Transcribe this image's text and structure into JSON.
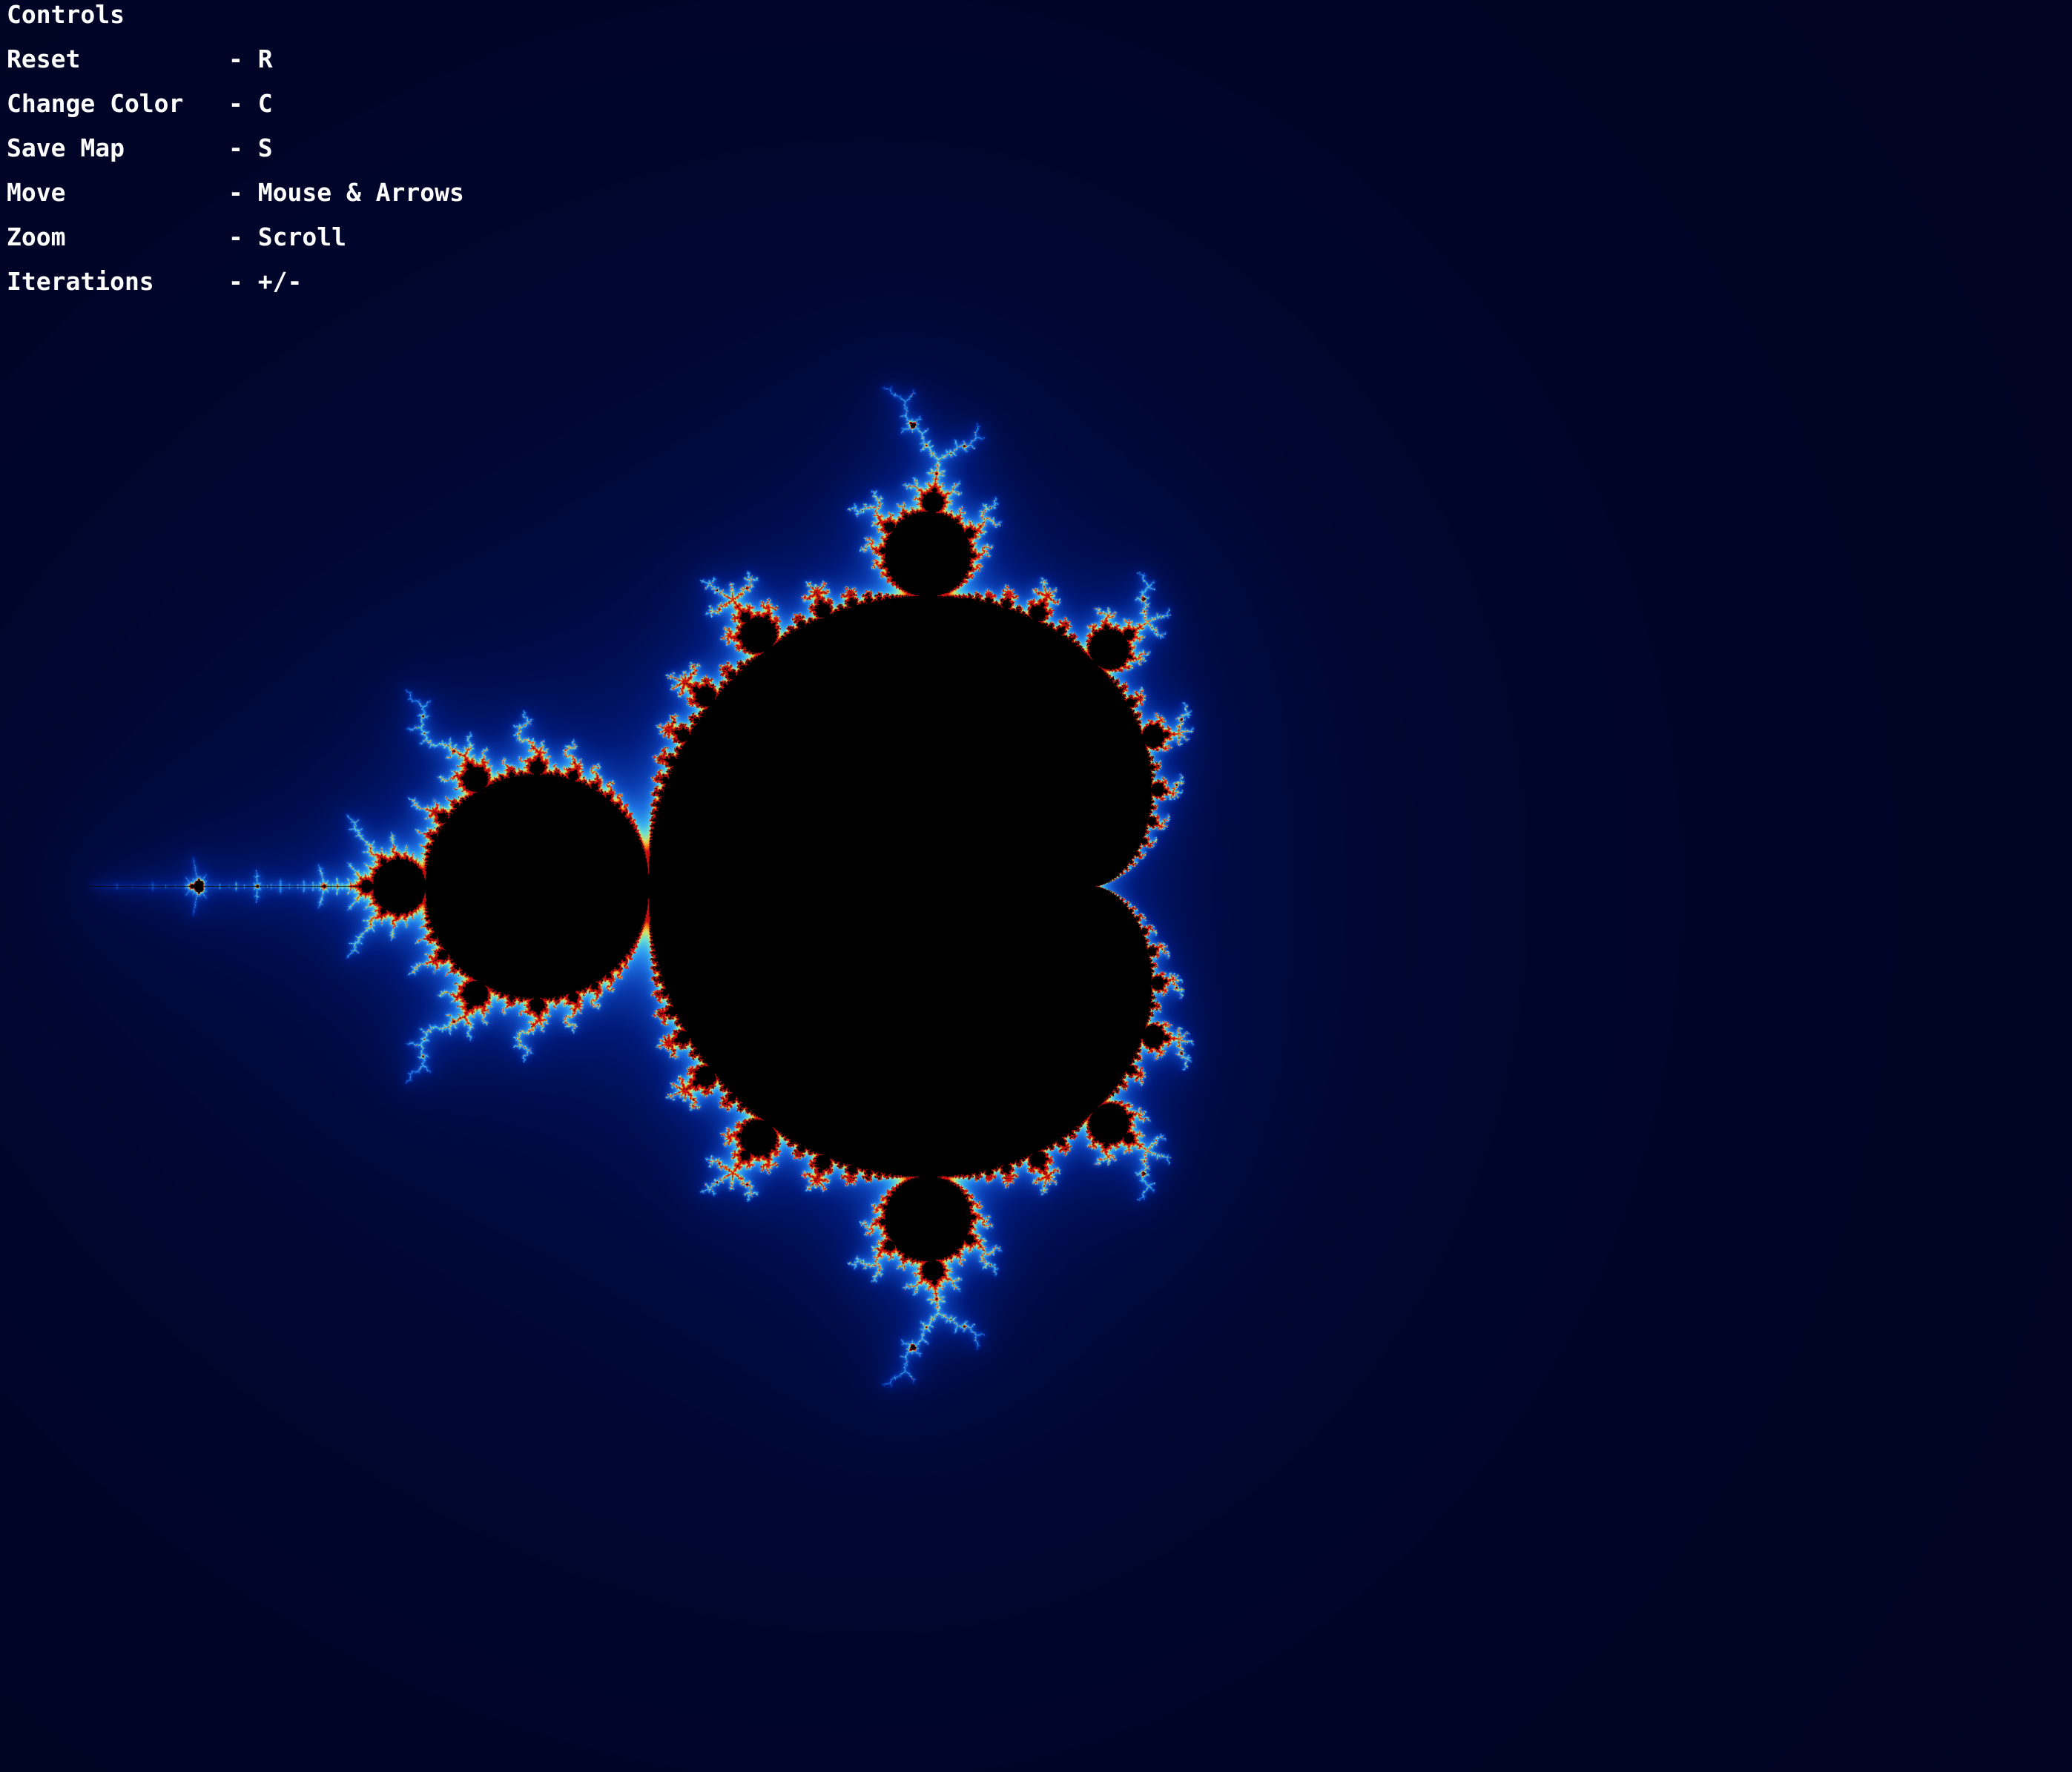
{
  "controls": {
    "title": "Controls",
    "items": [
      {
        "action": "Reset",
        "key": "- R"
      },
      {
        "action": "Change Color",
        "key": "- C"
      },
      {
        "action": "Save Map",
        "key": "- S"
      },
      {
        "action": "Move",
        "key": "- Mouse & Arrows"
      },
      {
        "action": "Zoom",
        "key": "- Scroll"
      },
      {
        "action": "Iterations",
        "key": "- +/-"
      }
    ]
  },
  "fractal": {
    "type": "mandelbrot",
    "palette": [
      "#000011",
      "#00052a",
      "#000c4a",
      "#001a7a",
      "#0a3cb0",
      "#1d6fe0",
      "#35aaf0",
      "#6fe0d0",
      "#d8e060",
      "#ff7a10",
      "#c81010"
    ],
    "interior_color": "#000000",
    "background_color": "#000000"
  }
}
